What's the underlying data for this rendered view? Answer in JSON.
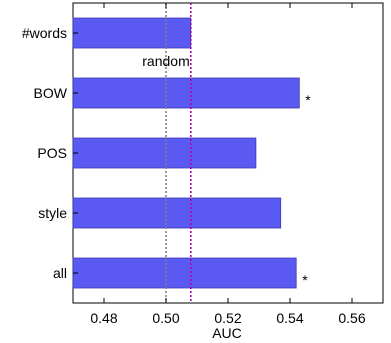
{
  "chart_data": {
    "type": "bar",
    "orientation": "horizontal",
    "categories": [
      "#words",
      "BOW",
      "POS",
      "style",
      "all"
    ],
    "values": [
      0.508,
      0.543,
      0.529,
      0.537,
      0.542
    ],
    "significance": [
      "",
      "*",
      "",
      "",
      "*"
    ],
    "xlabel": "AUC",
    "xlim": [
      0.47,
      0.57
    ],
    "xticks": [
      0.48,
      0.5,
      0.52,
      0.54,
      0.56
    ],
    "xtick_labels": [
      "0.48",
      "0.50",
      "0.52",
      "0.54",
      "0.56"
    ],
    "reference_lines": [
      {
        "label": "random",
        "value": 0.5,
        "color": "#808080",
        "style": "dotted"
      },
      {
        "label": "",
        "value": 0.508,
        "color": "#b000b0",
        "style": "dotted"
      }
    ],
    "bar_color": "#5a5af2",
    "grid": false,
    "legend": "none"
  }
}
